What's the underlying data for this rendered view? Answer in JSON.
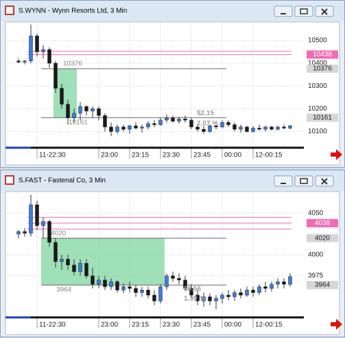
{
  "chart_data": [
    {
      "type": "candlestick",
      "title": "S.WYNN - Wynn Resorts Ltd, 3 Min",
      "categories": [
        null,
        null,
        null,
        "11-22:30",
        null,
        null,
        null,
        null,
        null,
        null,
        null,
        null,
        null,
        "23:00",
        null,
        null,
        null,
        null,
        "23:15",
        null,
        null,
        null,
        null,
        "23:30",
        null,
        null,
        null,
        null,
        "23:45",
        null,
        null,
        null,
        null,
        "00:00",
        null,
        null,
        null,
        null,
        "12-00:15",
        null,
        null,
        null,
        null,
        null,
        null
      ],
      "open": [
        10410,
        10405,
        10410,
        10520,
        10450,
        10460,
        10400,
        10290,
        10220,
        10160,
        10180,
        10210,
        10190,
        10200,
        10170,
        10120,
        10100,
        10120,
        10110,
        10125,
        10115,
        10120,
        10135,
        10130,
        10150,
        10160,
        10145,
        10155,
        10150,
        10120,
        10110,
        10100,
        10125,
        10120,
        10140,
        10130,
        10110,
        10120,
        10100,
        10115,
        10110,
        10120,
        10110,
        10120,
        10115
      ],
      "high": [
        10420,
        10415,
        10570,
        10530,
        10480,
        10470,
        10410,
        10310,
        10240,
        10200,
        10230,
        10215,
        10210,
        10210,
        10180,
        10140,
        10130,
        10130,
        10130,
        10140,
        10130,
        10145,
        10150,
        10160,
        10175,
        10170,
        10165,
        10170,
        10160,
        10135,
        10125,
        10130,
        10140,
        10150,
        10150,
        10140,
        10130,
        10125,
        10125,
        10130,
        10125,
        10125,
        10125,
        10130,
        10130
      ],
      "low": [
        10400,
        10395,
        10400,
        10430,
        10420,
        10380,
        10270,
        10200,
        10130,
        10140,
        10150,
        10170,
        10160,
        10150,
        10100,
        10080,
        10090,
        10100,
        10090,
        10110,
        10095,
        10110,
        10120,
        10125,
        10140,
        10140,
        10135,
        10140,
        10110,
        10100,
        10090,
        10095,
        10110,
        10115,
        10120,
        10100,
        10095,
        10095,
        10095,
        10105,
        10100,
        10105,
        10105,
        10110,
        10110
      ],
      "close": [
        10405,
        10410,
        10520,
        10450,
        10460,
        10400,
        10290,
        10220,
        10160,
        10180,
        10210,
        10190,
        10200,
        10170,
        10120,
        10100,
        10120,
        10110,
        10125,
        10115,
        10120,
        10135,
        10130,
        10150,
        10160,
        10145,
        10155,
        10150,
        10120,
        10110,
        10100,
        10125,
        10120,
        10140,
        10130,
        10110,
        10120,
        10100,
        10115,
        10110,
        10120,
        10110,
        10120,
        10115,
        10125
      ],
      "up_color": "#3b7ddd",
      "down_color": "#1a1a1a",
      "ylim": [
        10035,
        10575
      ],
      "yticks": [
        10100,
        10200,
        10300,
        10400,
        10500
      ],
      "grid": true,
      "levels": [
        {
          "value": 10452,
          "color": "#f06cb4"
        },
        {
          "value": 10438,
          "color": "#f06cb4",
          "tag": true
        },
        {
          "value": 10376,
          "color": "#666666",
          "tag": true
        },
        {
          "value": 10161,
          "color": "#666666",
          "tag": true
        }
      ],
      "zone_color": "#7fd6a0",
      "annotations": [
        "$2.15",
        "2.07 %"
      ]
    },
    {
      "type": "candlestick",
      "title": "S.FAST - Fastenal Co, 3 Min",
      "categories": [
        null,
        null,
        null,
        "11-22:30",
        null,
        null,
        null,
        null,
        null,
        null,
        null,
        null,
        null,
        "23:00",
        null,
        null,
        null,
        null,
        "23:15",
        null,
        null,
        null,
        null,
        "23:30",
        null,
        null,
        null,
        null,
        "23:45",
        null,
        null,
        null,
        null,
        "00:00",
        null,
        null,
        null,
        null,
        "12-00:15",
        null,
        null,
        null,
        null,
        null,
        null
      ],
      "open": [
        4025,
        4028,
        4026,
        4060,
        4035,
        4040,
        4015,
        3992,
        3995,
        3988,
        3980,
        3990,
        3975,
        3965,
        3970,
        3962,
        3968,
        3958,
        3962,
        3960,
        3955,
        3958,
        3952,
        3945,
        3962,
        3975,
        3972,
        3970,
        3960,
        3952,
        3945,
        3950,
        3945,
        3948,
        3952,
        3950,
        3955,
        3952,
        3958,
        3955,
        3962,
        3960,
        3965,
        3968,
        3965
      ],
      "high": [
        4030,
        4032,
        4072,
        4065,
        4045,
        4042,
        4020,
        4000,
        4000,
        3995,
        3995,
        3995,
        3985,
        3975,
        3975,
        3972,
        3970,
        3966,
        3968,
        3964,
        3962,
        3962,
        3958,
        3965,
        3978,
        3980,
        3978,
        3975,
        3965,
        3958,
        3955,
        3954,
        3952,
        3955,
        3958,
        3958,
        3960,
        3962,
        3962,
        3965,
        3968,
        3968,
        3972,
        3972,
        3978
      ],
      "low": [
        4020,
        4022,
        4022,
        4030,
        4020,
        4010,
        3985,
        3982,
        3982,
        3976,
        3975,
        3972,
        3960,
        3960,
        3958,
        3958,
        3955,
        3954,
        3955,
        3950,
        3950,
        3948,
        3940,
        3942,
        3958,
        3968,
        3965,
        3958,
        3948,
        3940,
        3938,
        3940,
        3935,
        3942,
        3946,
        3945,
        3948,
        3950,
        3950,
        3952,
        3955,
        3956,
        3960,
        3960,
        3962
      ],
      "close": [
        4028,
        4026,
        4060,
        4035,
        4040,
        4015,
        3992,
        3995,
        3988,
        3980,
        3990,
        3975,
        3965,
        3970,
        3962,
        3968,
        3958,
        3962,
        3960,
        3955,
        3958,
        3952,
        3945,
        3962,
        3975,
        3972,
        3970,
        3960,
        3952,
        3945,
        3950,
        3945,
        3948,
        3952,
        3950,
        3955,
        3952,
        3958,
        3955,
        3962,
        3960,
        3965,
        3968,
        3965,
        3974
      ],
      "up_color": "#3b7ddd",
      "down_color": "#1a1a1a",
      "ylim": [
        3927,
        4074
      ],
      "yticks": [
        3975,
        4000,
        4050
      ],
      "grid": true,
      "levels": [
        {
          "value": 4045,
          "color": "#f06cb4"
        },
        {
          "value": 4038,
          "color": "#f06cb4",
          "tag": true
        },
        {
          "value": 4031,
          "color": "#f06cb4"
        },
        {
          "value": 4020,
          "color": "#666666",
          "tag": true
        },
        {
          "value": 3964,
          "color": "#666666",
          "tag": true
        }
      ],
      "zone_color": "#7fd6a0",
      "annotations": [
        "$0.56",
        "1.39 %"
      ]
    }
  ]
}
